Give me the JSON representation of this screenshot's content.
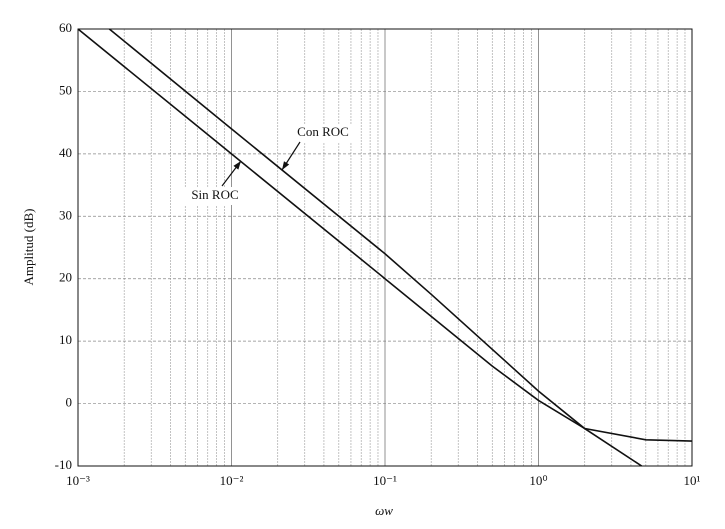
{
  "chart_data": {
    "type": "line",
    "ylabel": "Amplitud (dB)",
    "xlabel": "ωw",
    "log_x": true,
    "grid": true,
    "xlim": [
      0.001,
      10
    ],
    "ylim": [
      -10,
      60
    ],
    "xticks": [
      {
        "value": 0.001,
        "label": "10⁻³"
      },
      {
        "value": 0.01,
        "label": "10⁻²"
      },
      {
        "value": 0.1,
        "label": "10⁻¹"
      },
      {
        "value": 1,
        "label": "10⁰"
      },
      {
        "value": 10,
        "label": "10¹"
      }
    ],
    "yticks": [
      -10,
      0,
      10,
      20,
      30,
      40,
      50,
      60
    ],
    "series": [
      {
        "name": "Sin ROC",
        "color": "#111111",
        "x": [
          0.001,
          0.01,
          0.1,
          0.5,
          1,
          2,
          5,
          10
        ],
        "values": [
          60,
          40,
          20,
          6,
          0.5,
          -4,
          -5.8,
          -6
        ]
      },
      {
        "name": "Con ROC",
        "color": "#111111",
        "x": [
          0.0016,
          0.01,
          0.1,
          0.2,
          1,
          2,
          4.7
        ],
        "values": [
          60,
          44,
          24,
          17.5,
          2,
          -4,
          -10
        ]
      }
    ]
  }
}
